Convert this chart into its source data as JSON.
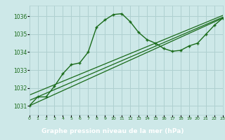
{
  "main_x": [
    0,
    1,
    2,
    3,
    4,
    5,
    6,
    7,
    8,
    9,
    10,
    11,
    12,
    13,
    14,
    15,
    16,
    17,
    18,
    19,
    20,
    21,
    22,
    23
  ],
  "main_y": [
    1031.0,
    1031.5,
    1031.5,
    1032.1,
    1032.8,
    1033.3,
    1033.4,
    1034.0,
    1035.4,
    1035.8,
    1036.1,
    1036.15,
    1035.7,
    1035.1,
    1034.7,
    1034.5,
    1034.2,
    1034.05,
    1034.1,
    1034.35,
    1034.5,
    1035.0,
    1035.5,
    1035.9
  ],
  "line2_x": [
    0,
    23
  ],
  "line2_y": [
    1031.0,
    1035.9
  ],
  "line3_x": [
    0,
    23
  ],
  "line3_y": [
    1031.3,
    1035.95
  ],
  "line4_x": [
    0,
    23
  ],
  "line4_y": [
    1031.6,
    1036.05
  ],
  "line_color": "#1a6b1a",
  "marker_color": "#1a6b1a",
  "bg_color": "#cde8e8",
  "grid_color": "#afd0d0",
  "label_bg": "#1a6b1a",
  "xlabel": "Graphe pression niveau de la mer (hPa)",
  "xlim": [
    0,
    23
  ],
  "ylim": [
    1030.5,
    1036.6
  ],
  "yticks": [
    1031,
    1032,
    1033,
    1034,
    1035,
    1036
  ],
  "xticks": [
    0,
    1,
    2,
    3,
    4,
    5,
    6,
    7,
    8,
    9,
    10,
    11,
    12,
    13,
    14,
    15,
    16,
    17,
    18,
    19,
    20,
    21,
    22,
    23
  ]
}
